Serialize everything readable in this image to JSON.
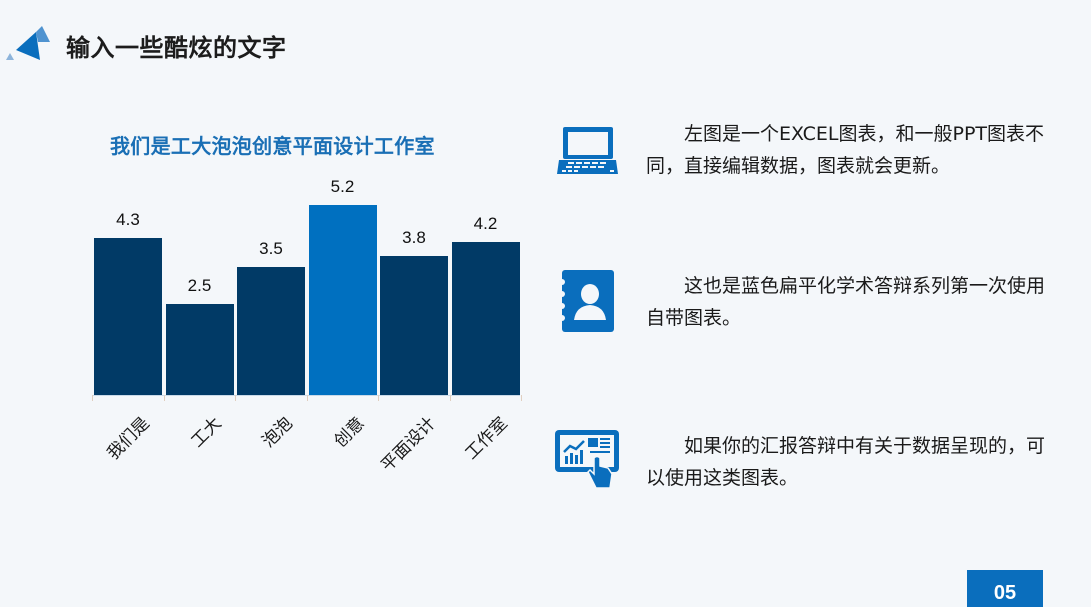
{
  "header": {
    "title": "输入一些酷炫的文字"
  },
  "chart_data": {
    "type": "bar",
    "title": "我们是工大泡泡创意平面设计工作室",
    "categories": [
      "我们是",
      "工大",
      "泡泡",
      "创意",
      "平面设计",
      "工作室"
    ],
    "values": [
      4.3,
      2.5,
      3.5,
      5.2,
      3.8,
      4.2
    ],
    "value_labels": [
      "4.3",
      "2.5",
      "3.5",
      "5.2",
      "3.8",
      "4.2"
    ],
    "highlight_index": 3,
    "colors": {
      "default": "#013a66",
      "highlight": "#0070c0"
    },
    "xlabel": "",
    "ylabel": "",
    "ylim": [
      0,
      5.2
    ],
    "grid": false,
    "legend": "none",
    "data_labels": true
  },
  "info": [
    {
      "icon": "laptop-icon",
      "text": "左图是一个EXCEL图表，和一般PPT图表不同，直接编辑数据，图表就会更新。"
    },
    {
      "icon": "contact-book-icon",
      "text": "这也是蓝色扁平化学术答辩系列第一次使用自带图表。"
    },
    {
      "icon": "tablet-chart-touch-icon",
      "text": "如果你的汇报答辩中有关于数据呈现的，可以使用这类图表。"
    }
  ],
  "footer": {
    "page_number": "05"
  },
  "colors": {
    "background": "#f4f7fa",
    "accent": "#0070c0",
    "dark_bar": "#013a66",
    "chart_title": "#1a6fb5"
  }
}
